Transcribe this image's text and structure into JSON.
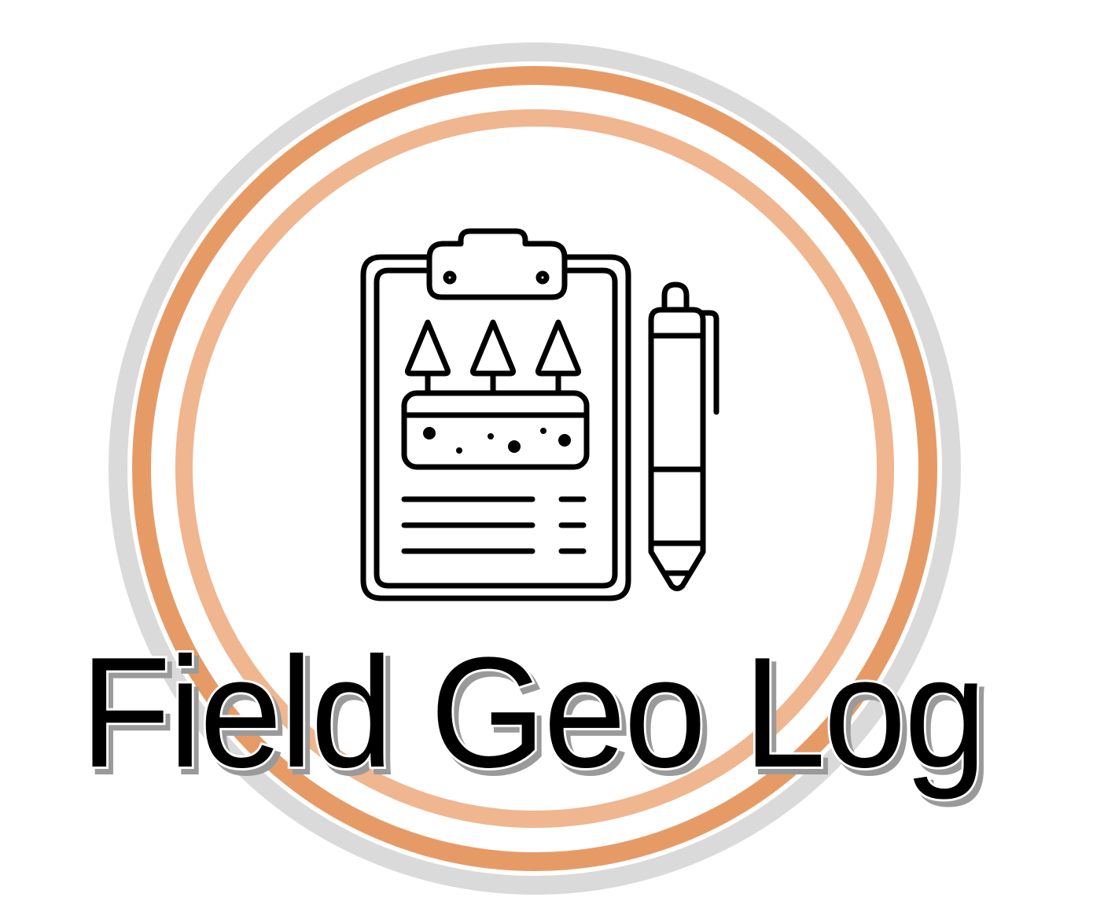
{
  "logo": {
    "title": "Field Geo Log",
    "colors": {
      "outer_ring": "#dadada",
      "middle_ring": "#e69b67",
      "inner_ring": "#efb68f",
      "icon_stroke": "#000000",
      "title_fill": "#000000",
      "title_outline": "#ffffff",
      "title_shadow": "#9a9a9a",
      "background": "#ffffff"
    },
    "icons": [
      "clipboard-icon",
      "clipboard-clip-icon",
      "tree-icon",
      "soil-sample-icon",
      "text-lines-icon",
      "pen-icon"
    ]
  }
}
